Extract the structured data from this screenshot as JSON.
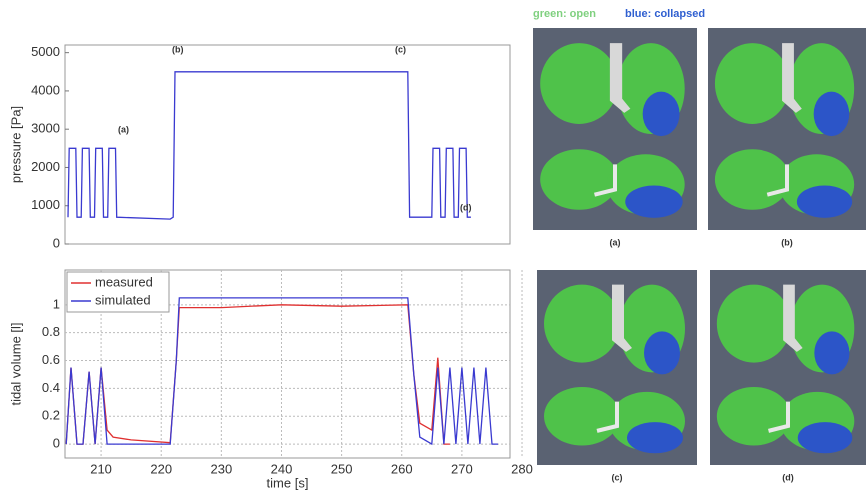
{
  "chart_data": [
    {
      "type": "line",
      "ylabel": "pressure [Pa]",
      "xlim": [
        204,
        278
      ],
      "ylim": [
        0,
        5200
      ],
      "yticks": [
        0,
        1000,
        2000,
        3000,
        4000,
        5000
      ],
      "grid": false,
      "annotations": [
        "(a)",
        "(b)",
        "(c)",
        "(d)"
      ],
      "series": [
        {
          "color": "#3a3ad0",
          "x": [
            204.5,
            204.7,
            205.8,
            206.0,
            206.7,
            206.9,
            208.0,
            208.2,
            208.9,
            209.1,
            210.2,
            210.4,
            211.1,
            211.3,
            212.4,
            212.6,
            221.5,
            222.0,
            222.3,
            261.0,
            261.3,
            262.0,
            265.0,
            265.2,
            266.3,
            266.5,
            267.2,
            267.4,
            268.5,
            268.7,
            269.4,
            269.6,
            270.7,
            270.9,
            271.5
          ],
          "values": [
            700,
            2500,
            2500,
            700,
            700,
            2500,
            2500,
            700,
            700,
            2500,
            2500,
            700,
            700,
            2500,
            2500,
            700,
            650,
            700,
            4500,
            4500,
            700,
            700,
            700,
            2500,
            2500,
            700,
            700,
            2500,
            2500,
            700,
            700,
            2500,
            2500,
            700,
            700
          ]
        }
      ]
    },
    {
      "type": "line",
      "ylabel": "tidal volume [l]",
      "xlabel": "time [s]",
      "xlim": [
        204,
        278
      ],
      "ylim": [
        -0.1,
        1.25
      ],
      "xticks": [
        210,
        220,
        230,
        240,
        250,
        260,
        270,
        280
      ],
      "yticks": [
        0,
        0.2,
        0.4,
        0.6,
        0.8,
        1
      ],
      "grid": true,
      "series": [
        {
          "name": "measured",
          "color": "#e03030",
          "x": [
            204.2,
            205.0,
            206.0,
            207.0,
            208.0,
            209.0,
            210.0,
            211.0,
            212.0,
            215.0,
            221.5,
            222.5,
            223.0,
            230.0,
            240.0,
            250.0,
            261.0,
            262.0,
            263.0,
            265.0,
            266.0,
            267.0,
            268.0
          ],
          "values": [
            0,
            0.55,
            0,
            0,
            0.52,
            0,
            0.55,
            0.1,
            0.05,
            0.03,
            0.01,
            0.6,
            0.98,
            0.98,
            1.0,
            0.99,
            1.0,
            0.5,
            0.15,
            0.1,
            0.62,
            0,
            0
          ]
        },
        {
          "name": "simulated",
          "color": "#3a3ad0",
          "x": [
            204.2,
            205.0,
            206.0,
            207.0,
            208.0,
            209.0,
            210.0,
            211.0,
            212.0,
            221.5,
            222.5,
            223.0,
            261.0,
            262.0,
            263.0,
            265.0,
            266.0,
            267.0,
            268.0,
            269.0,
            270.0,
            271.0,
            272.0,
            273.0,
            274.0,
            275.0,
            276.0
          ],
          "values": [
            0,
            0.55,
            0,
            0,
            0.52,
            0,
            0.55,
            0,
            0,
            0,
            0.6,
            1.05,
            1.05,
            0.5,
            0.05,
            0,
            0.55,
            0,
            0.55,
            0,
            0.55,
            0,
            0.55,
            0,
            0.55,
            0,
            0
          ]
        }
      ]
    }
  ],
  "figure": {
    "legend_open": "green: open",
    "legend_collapsed": "blue: collapsed",
    "panels": [
      "(a)",
      "(b)",
      "(c)",
      "(d)"
    ]
  }
}
